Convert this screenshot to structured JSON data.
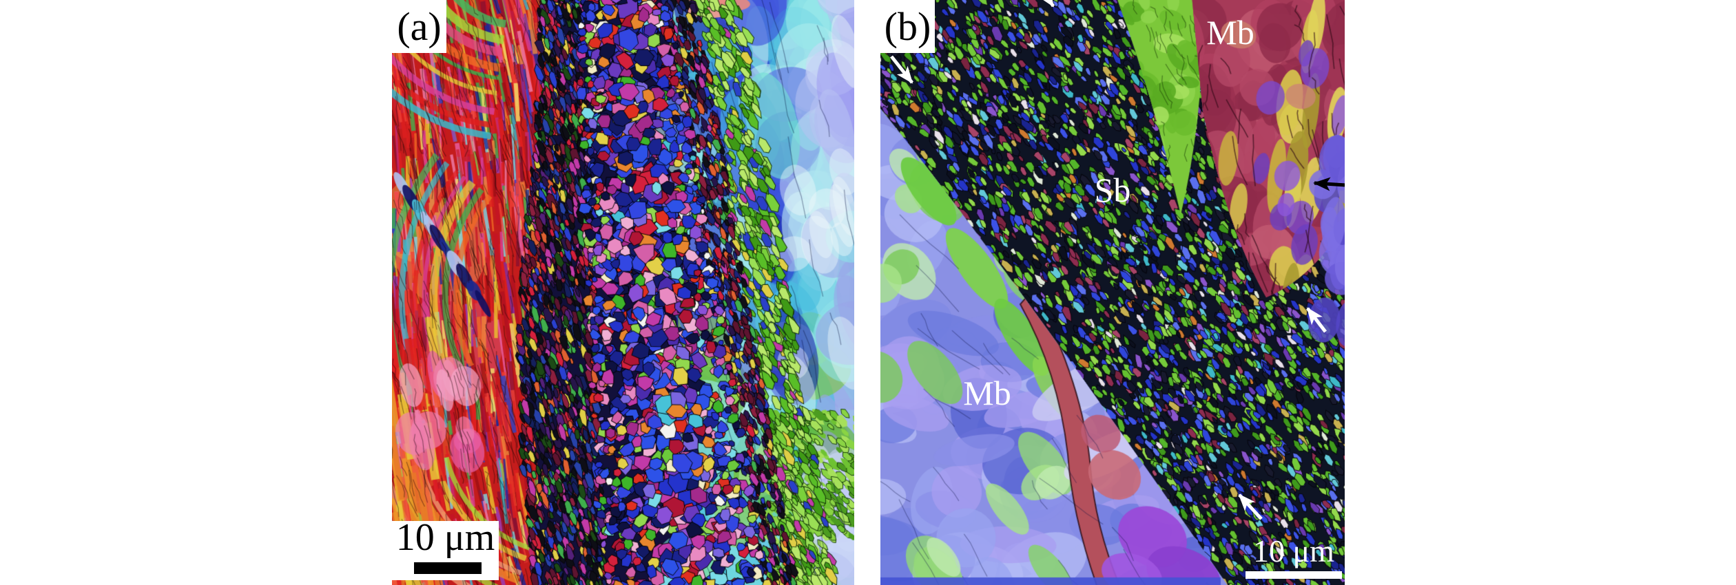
{
  "figure": {
    "panel_a": {
      "label": "(a)",
      "scale_bar": {
        "text": "10 μm",
        "bar_color": "#000000",
        "box_color": "#ffffff"
      }
    },
    "panel_b": {
      "label": "(b)",
      "annotations": {
        "mb_top": "Mb",
        "sb": "Sb",
        "mb_left": "Mb"
      },
      "scale_bar": {
        "text": "10 μm",
        "bar_color": "#ffffff"
      },
      "arrows": [
        {
          "id": "white-arrow-top-left",
          "color": "#ffffff",
          "direction": "down-right"
        },
        {
          "id": "white-arrow-top-center",
          "color": "#ffffff",
          "direction": "down-right"
        },
        {
          "id": "white-arrow-right",
          "color": "#ffffff",
          "direction": "up-left"
        },
        {
          "id": "white-arrow-bottom",
          "color": "#ffffff",
          "direction": "up-left"
        },
        {
          "id": "black-arrow-right-edge",
          "color": "#000000",
          "direction": "left"
        }
      ]
    },
    "colors": {
      "page_background": "#ffffff",
      "panel_label_text": "#000000",
      "annotation_text": "#ffffff",
      "white_arrow": "#ffffff",
      "black_arrow": "#000000"
    }
  }
}
